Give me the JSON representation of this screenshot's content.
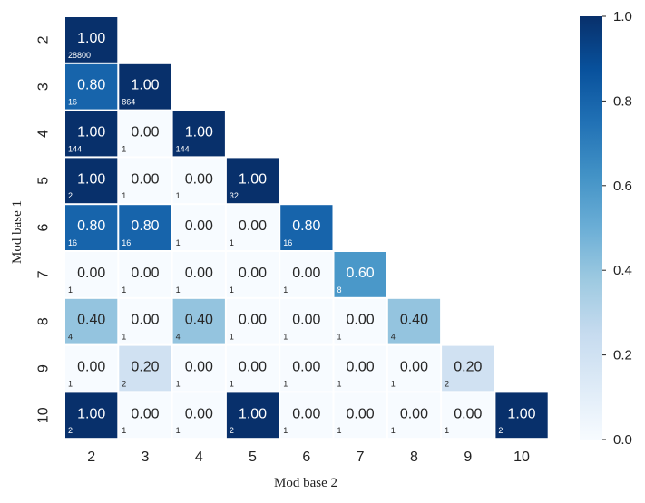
{
  "chart_data": {
    "type": "heatmap",
    "xlabel": "Mod base 2",
    "ylabel": "Mod base 1",
    "x_categories": [
      "2",
      "3",
      "4",
      "5",
      "6",
      "7",
      "8",
      "9",
      "10"
    ],
    "y_categories": [
      "2",
      "3",
      "4",
      "5",
      "6",
      "7",
      "8",
      "9",
      "10"
    ],
    "layout": "lower-triangular",
    "cells": [
      [
        [
          "1.00",
          "28800"
        ]
      ],
      [
        [
          "0.80",
          "16"
        ],
        [
          "1.00",
          "864"
        ]
      ],
      [
        [
          "1.00",
          "144"
        ],
        [
          "0.00",
          "1"
        ],
        [
          "1.00",
          "144"
        ]
      ],
      [
        [
          "1.00",
          "2"
        ],
        [
          "0.00",
          "1"
        ],
        [
          "0.00",
          "1"
        ],
        [
          "1.00",
          "32"
        ]
      ],
      [
        [
          "0.80",
          "16"
        ],
        [
          "0.80",
          "16"
        ],
        [
          "0.00",
          "1"
        ],
        [
          "0.00",
          "1"
        ],
        [
          "0.80",
          "16"
        ]
      ],
      [
        [
          "0.00",
          "1"
        ],
        [
          "0.00",
          "1"
        ],
        [
          "0.00",
          "1"
        ],
        [
          "0.00",
          "1"
        ],
        [
          "0.00",
          "1"
        ],
        [
          "0.60",
          "8"
        ]
      ],
      [
        [
          "0.40",
          "4"
        ],
        [
          "0.00",
          "1"
        ],
        [
          "0.40",
          "4"
        ],
        [
          "0.00",
          "1"
        ],
        [
          "0.00",
          "1"
        ],
        [
          "0.00",
          "1"
        ],
        [
          "0.40",
          "4"
        ]
      ],
      [
        [
          "0.00",
          "1"
        ],
        [
          "0.20",
          "2"
        ],
        [
          "0.00",
          "1"
        ],
        [
          "0.00",
          "1"
        ],
        [
          "0.00",
          "1"
        ],
        [
          "0.00",
          "1"
        ],
        [
          "0.00",
          "1"
        ],
        [
          "0.20",
          "2"
        ]
      ],
      [
        [
          "1.00",
          "2"
        ],
        [
          "0.00",
          "1"
        ],
        [
          "0.00",
          "1"
        ],
        [
          "1.00",
          "2"
        ],
        [
          "0.00",
          "1"
        ],
        [
          "0.00",
          "1"
        ],
        [
          "0.00",
          "1"
        ],
        [
          "0.00",
          "1"
        ],
        [
          "1.00",
          "2"
        ]
      ]
    ],
    "colorbar": {
      "colormap": "Blues",
      "range": [
        0,
        1
      ],
      "ticks": [
        "0.0",
        "0.2",
        "0.4",
        "0.6",
        "0.8",
        "1.0"
      ]
    },
    "grid": false
  }
}
